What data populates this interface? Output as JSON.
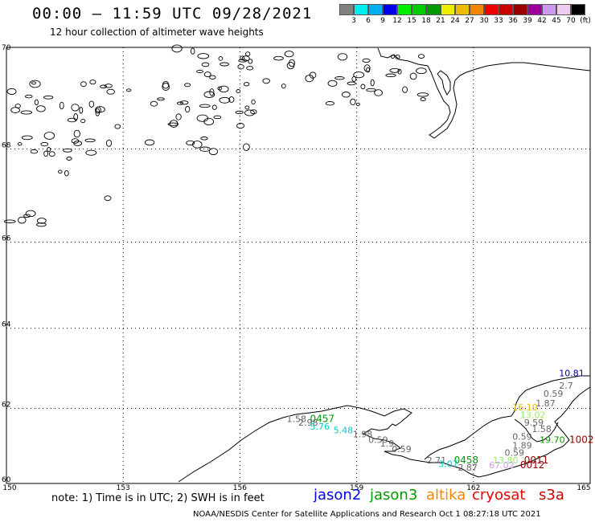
{
  "header": {
    "title": "00:00 – 11:59 UTC 09/28/2021",
    "subtitle": "12 hour collection of altimeter wave heights"
  },
  "colorbar": {
    "colors": [
      "#808080",
      "#00eeee",
      "#00b0f0",
      "#0000ee",
      "#00ee00",
      "#00cc00",
      "#009900",
      "#eeee00",
      "#eebb00",
      "#ee8800",
      "#ee0000",
      "#cc0000",
      "#990000",
      "#990099",
      "#cc99ee",
      "#eeccee",
      "#000000"
    ],
    "labels": [
      "3",
      "6",
      "9",
      "12",
      "15",
      "18",
      "21",
      "24",
      "27",
      "30",
      "33",
      "36",
      "39",
      "42",
      "45",
      "70",
      "(ft)"
    ]
  },
  "map": {
    "lon_ticks": [
      "150",
      "153",
      "156",
      "159",
      "162",
      "165"
    ],
    "lat_ticks": [
      "70",
      "68",
      "66",
      "64",
      "62",
      "60"
    ],
    "lon_range": [
      150,
      165
    ],
    "lat_range": [
      60,
      70
    ],
    "annotations": [
      {
        "text": "10.81",
        "lon": 164.2,
        "lat": 62.82,
        "color": "#000099",
        "size": 11
      },
      {
        "text": "2.7",
        "lon": 164.2,
        "lat": 62.5,
        "color": "#666666",
        "size": 11
      },
      {
        "text": "0.59",
        "lon": 163.8,
        "lat": 62.3,
        "color": "#666666",
        "size": 11
      },
      {
        "text": "1.87",
        "lon": 163.6,
        "lat": 62.05,
        "color": "#666666",
        "size": 11
      },
      {
        "text": "16.10",
        "lon": 163.0,
        "lat": 61.95,
        "color": "#eebb00",
        "size": 11
      },
      {
        "text": "13.02",
        "lon": 163.2,
        "lat": 61.75,
        "color": "#99ee66",
        "size": 11
      },
      {
        "text": "9.59",
        "lon": 163.3,
        "lat": 61.55,
        "color": "#666666",
        "size": 11
      },
      {
        "text": "1.58",
        "lon": 163.5,
        "lat": 61.38,
        "color": "#666666",
        "size": 11
      },
      {
        "text": "0.59",
        "lon": 163.0,
        "lat": 61.18,
        "color": "#666666",
        "size": 11
      },
      {
        "text": "19.70",
        "lon": 163.7,
        "lat": 61.1,
        "color": "#009900",
        "size": 11
      },
      {
        "text": "1002",
        "lon": 164.6,
        "lat": 61.1,
        "color": "#990000",
        "size": 12
      },
      {
        "text": "1.89",
        "lon": 163.0,
        "lat": 60.95,
        "color": "#666666",
        "size": 11
      },
      {
        "text": "0.59",
        "lon": 162.8,
        "lat": 60.75,
        "color": "#666666",
        "size": 11
      },
      {
        "text": "13.80",
        "lon": 162.5,
        "lat": 60.55,
        "color": "#99ee66",
        "size": 11
      },
      {
        "text": "0011",
        "lon": 163.3,
        "lat": 60.55,
        "color": "#990000",
        "size": 12
      },
      {
        "text": "67.02",
        "lon": 162.4,
        "lat": 60.42,
        "color": "#cc99ee",
        "size": 11
      },
      {
        "text": "0012",
        "lon": 163.2,
        "lat": 60.42,
        "color": "#990000",
        "size": 12
      },
      {
        "text": "1.58",
        "lon": 157.2,
        "lat": 61.65,
        "color": "#666666",
        "size": 11
      },
      {
        "text": "0457",
        "lon": 157.8,
        "lat": 61.65,
        "color": "#009900",
        "size": 12
      },
      {
        "text": "2.98",
        "lon": 157.5,
        "lat": 61.55,
        "color": "#666666",
        "size": 11
      },
      {
        "text": "5.76",
        "lon": 157.8,
        "lat": 61.45,
        "color": "#00cccc",
        "size": 11
      },
      {
        "text": "5.48",
        "lon": 158.4,
        "lat": 61.35,
        "color": "#00cccc",
        "size": 11
      },
      {
        "text": "1.98",
        "lon": 158.9,
        "lat": 61.25,
        "color": "#666666",
        "size": 11
      },
      {
        "text": "0.59",
        "lon": 159.3,
        "lat": 61.1,
        "color": "#666666",
        "size": 11
      },
      {
        "text": "1.9",
        "lon": 159.6,
        "lat": 61.0,
        "color": "#666666",
        "size": 11
      },
      {
        "text": "0.59",
        "lon": 159.9,
        "lat": 60.85,
        "color": "#666666",
        "size": 11
      },
      {
        "text": "2.71",
        "lon": 160.8,
        "lat": 60.55,
        "color": "#666666",
        "size": 11
      },
      {
        "text": "0458",
        "lon": 161.5,
        "lat": 60.55,
        "color": "#009900",
        "size": 12
      },
      {
        "text": "3.07",
        "lon": 161.1,
        "lat": 60.45,
        "color": "#00cccc",
        "size": 11
      },
      {
        "text": "2.87",
        "lon": 161.6,
        "lat": 60.35,
        "color": "#666666",
        "size": 11
      }
    ]
  },
  "footer": {
    "note": "note: 1) Time is in UTC; 2) SWH is in feet",
    "satellites": [
      {
        "name": "jason2",
        "color": "#0000ee"
      },
      {
        "name": "jason3",
        "color": "#009900"
      },
      {
        "name": "altika",
        "color": "#ee8800"
      },
      {
        "name": "cryosat",
        "color": "#ee0000"
      },
      {
        "name": "s3a",
        "color": "#cc0000"
      }
    ],
    "credit": "NOAA/NESDIS Center for Satellite Applications and Research   Oct  1 08:27:18 UTC 2021"
  }
}
